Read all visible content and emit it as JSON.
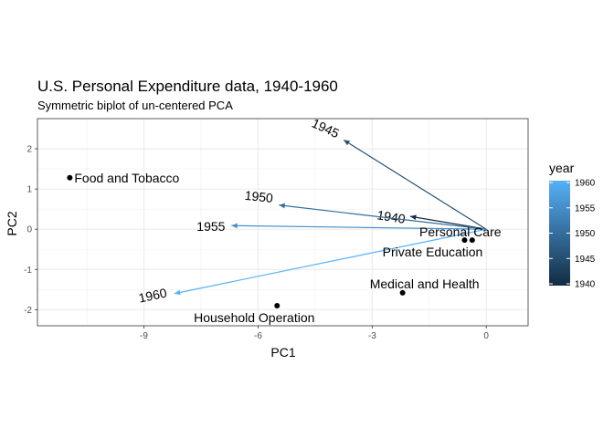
{
  "chart_data": {
    "type": "scatter",
    "title": "U.S. Personal Expenditure data, 1940-1960",
    "subtitle": "Symmetric biplot of un-centered PCA",
    "xlabel": "PC1",
    "ylabel": "PC2",
    "xlim": [
      -11.8,
      1.1
    ],
    "ylim": [
      -2.4,
      2.75
    ],
    "xticks": [
      -9,
      -6,
      -3,
      0
    ],
    "yticks": [
      -2,
      -1,
      0,
      1,
      2
    ],
    "grid": true,
    "points": [
      {
        "label": "Food and Tobacco",
        "x": -10.95,
        "y": 1.28
      },
      {
        "label": "Household Operation",
        "x": -5.5,
        "y": -1.9
      },
      {
        "label": "Medical and Health",
        "x": -2.2,
        "y": -1.58
      },
      {
        "label": "Personal Care",
        "x": -0.37,
        "y": -0.27
      },
      {
        "label": "Private Education",
        "x": -0.57,
        "y": -0.27
      }
    ],
    "arrows": [
      {
        "label": "1940",
        "year": 1940,
        "x": -2.0,
        "y": 0.32
      },
      {
        "label": "1945",
        "year": 1945,
        "x": -3.75,
        "y": 2.22
      },
      {
        "label": "1950",
        "year": 1950,
        "x": -5.45,
        "y": 0.6
      },
      {
        "label": "1955",
        "year": 1955,
        "x": -6.7,
        "y": 0.09
      },
      {
        "label": "1960",
        "year": 1960,
        "x": -8.2,
        "y": -1.6
      }
    ],
    "legend": {
      "title": "year",
      "position": "right",
      "range": [
        1940,
        1960
      ],
      "ticks": [
        1940,
        1945,
        1950,
        1955,
        1960
      ],
      "colors": {
        "low": "#132b43",
        "high": "#56b1f7"
      }
    }
  }
}
